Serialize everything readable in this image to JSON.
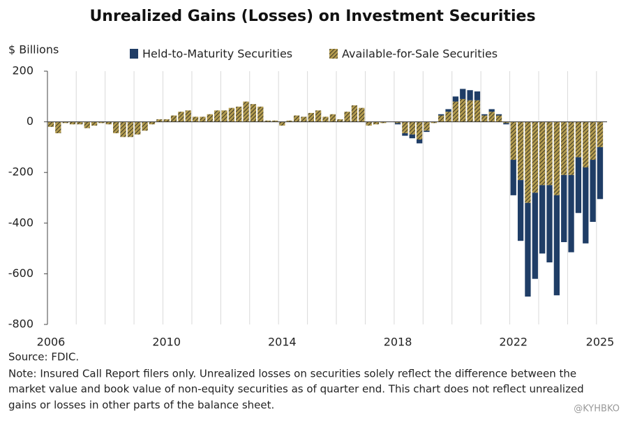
{
  "chart_data": {
    "type": "stacked_bar",
    "title": "Unrealized Gains (Losses) on Investment Securities",
    "y_axis_label": "$ Billions",
    "source": "Source: FDIC.",
    "note": [
      "Note: Insured Call Report filers only. Unrealized losses on securities solely reflect the difference between the",
      "market value and book value of non-equity securities as of quarter end. This chart does not reflect unrealized",
      "gains or losses in other parts of the balance sheet."
    ],
    "watermark": "@KYHBKO",
    "categories": [
      "2006",
      null,
      null,
      null,
      null,
      null,
      null,
      null,
      null,
      null,
      null,
      null,
      null,
      null,
      null,
      null,
      "2010",
      null,
      null,
      null,
      null,
      null,
      null,
      null,
      null,
      null,
      null,
      null,
      null,
      null,
      null,
      null,
      "2014",
      null,
      null,
      null,
      null,
      null,
      null,
      null,
      null,
      null,
      null,
      null,
      null,
      null,
      null,
      null,
      "2018",
      null,
      null,
      null,
      null,
      null,
      null,
      null,
      null,
      null,
      null,
      null,
      null,
      null,
      null,
      null,
      "2022",
      null,
      null,
      null,
      null,
      null,
      null,
      null,
      null,
      null,
      null,
      null,
      "2025"
    ],
    "series": [
      {
        "name": "Held-to-Maturity Securities",
        "color": "#1f3d66",
        "values": [
          0,
          0,
          0,
          0,
          0,
          0,
          0,
          0,
          0,
          0,
          0,
          0,
          0,
          0,
          0,
          0,
          0,
          0,
          0,
          0,
          0,
          0,
          0,
          0,
          0,
          0,
          0,
          0,
          0,
          0,
          0,
          0,
          0,
          0,
          0,
          0,
          0,
          0,
          0,
          0,
          0,
          0,
          0,
          0,
          0,
          0,
          0,
          0,
          -5,
          -10,
          -15,
          -15,
          -5,
          0,
          5,
          10,
          20,
          40,
          40,
          35,
          5,
          10,
          5,
          -5,
          -140,
          -240,
          -370,
          -340,
          -270,
          -305,
          -395,
          -265,
          -305,
          -220,
          -300,
          -245,
          -205
        ]
      },
      {
        "name": "Available-for-Sale Securities",
        "color": "#b39b4f",
        "hatch": true,
        "values": [
          -20,
          -45,
          -5,
          -10,
          -10,
          -25,
          -15,
          -5,
          -10,
          -45,
          -60,
          -60,
          -50,
          -35,
          -10,
          10,
          10,
          25,
          40,
          45,
          20,
          20,
          30,
          45,
          45,
          55,
          60,
          80,
          70,
          60,
          5,
          5,
          -15,
          5,
          25,
          20,
          35,
          45,
          20,
          30,
          10,
          40,
          65,
          55,
          -15,
          -10,
          -5,
          0,
          -5,
          -45,
          -50,
          -70,
          -35,
          -5,
          25,
          40,
          80,
          90,
          85,
          85,
          25,
          40,
          25,
          -5,
          -150,
          -230,
          -320,
          -280,
          -250,
          -250,
          -290,
          -210,
          -210,
          -140,
          -180,
          -150,
          -100
        ]
      }
    ],
    "ylim": [
      -800,
      200
    ],
    "yticks": [
      -800,
      -600,
      -400,
      -200,
      0,
      200
    ],
    "grid": true
  }
}
